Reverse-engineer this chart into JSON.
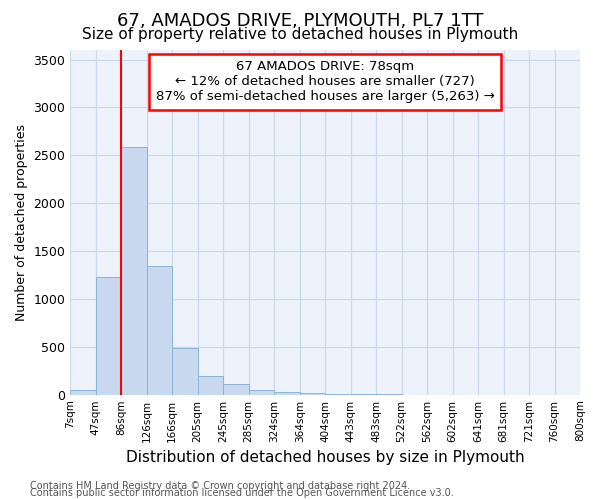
{
  "title": "67, AMADOS DRIVE, PLYMOUTH, PL7 1TT",
  "subtitle": "Size of property relative to detached houses in Plymouth",
  "xlabel": "Distribution of detached houses by size in Plymouth",
  "ylabel": "Number of detached properties",
  "footnote1": "Contains HM Land Registry data © Crown copyright and database right 2024.",
  "footnote2": "Contains public sector information licensed under the Open Government Licence v3.0.",
  "annotation_line1": "67 AMADOS DRIVE: 78sqm",
  "annotation_line2": "← 12% of detached houses are smaller (727)",
  "annotation_line3": "87% of semi-detached houses are larger (5,263) →",
  "bar_values": [
    50,
    1230,
    2590,
    1340,
    490,
    200,
    115,
    50,
    30,
    20,
    10,
    5,
    5,
    0,
    0,
    0,
    0,
    0,
    0,
    0
  ],
  "bar_color": "#c8d8ee",
  "bar_edge_color": "#8ab4d8",
  "tick_labels": [
    "7sqm",
    "47sqm",
    "86sqm",
    "126sqm",
    "166sqm",
    "205sqm",
    "245sqm",
    "285sqm",
    "324sqm",
    "364sqm",
    "404sqm",
    "443sqm",
    "483sqm",
    "522sqm",
    "562sqm",
    "602sqm",
    "641sqm",
    "681sqm",
    "721sqm",
    "760sqm",
    "800sqm"
  ],
  "ylim": [
    0,
    3600
  ],
  "yticks": [
    0,
    500,
    1000,
    1500,
    2000,
    2500,
    3000,
    3500
  ],
  "grid_color": "#c8d8ee",
  "plot_bg_color": "#edf2fb",
  "title_fontsize": 13,
  "subtitle_fontsize": 11,
  "annotation_fontsize": 9.5,
  "ylabel_fontsize": 9,
  "xlabel_fontsize": 11,
  "footnote_fontsize": 7
}
